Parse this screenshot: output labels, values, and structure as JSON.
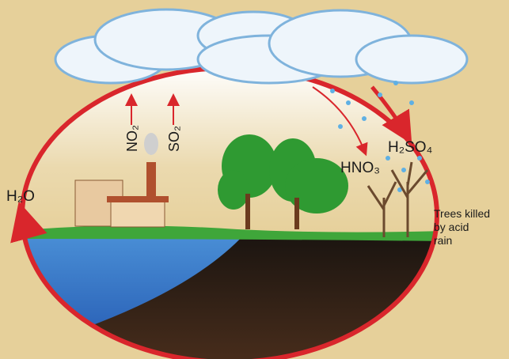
{
  "labels": {
    "water": "H₂O",
    "nitrogen_dioxide": "NO₂",
    "sulfur_dioxide": "SO₂",
    "nitric_acid": "HNO₃",
    "sulfuric_acid": "H₂SO₄",
    "trees_note": [
      "Trees killed",
      "by acid",
      "rain"
    ]
  }
}
